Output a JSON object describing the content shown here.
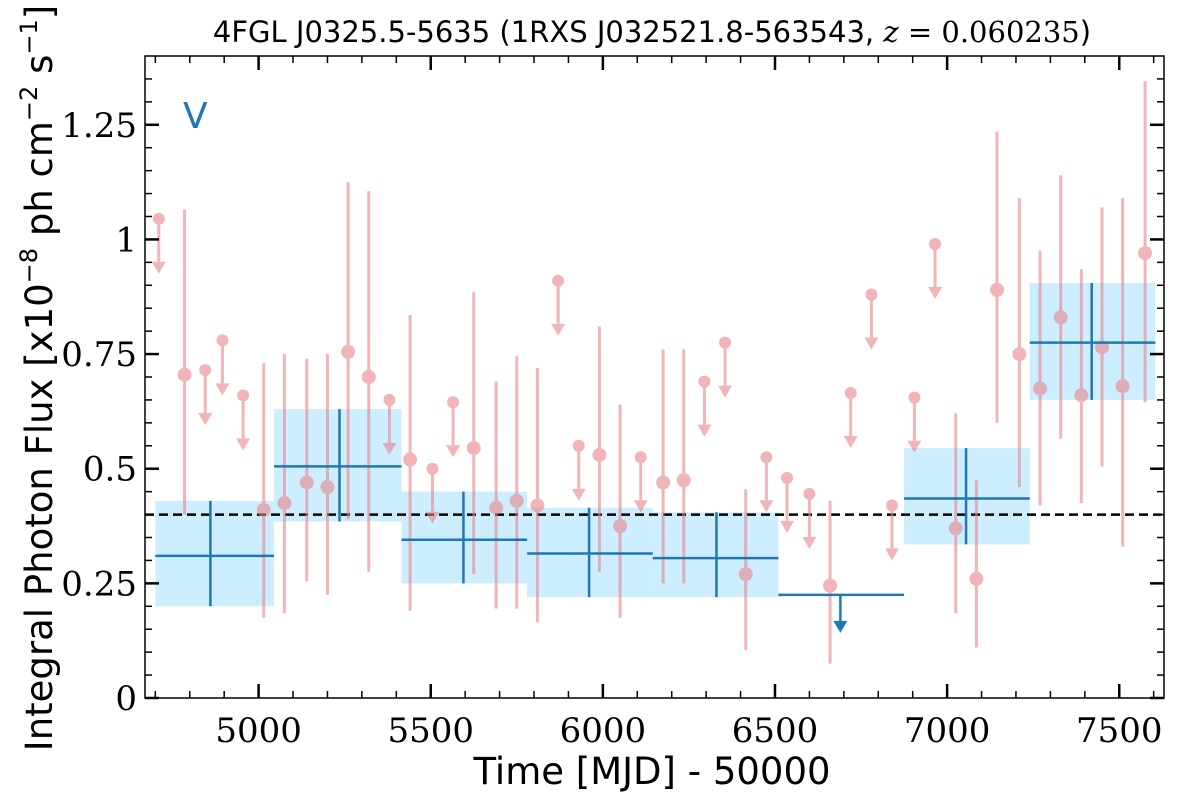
{
  "chart_data": {
    "type": "scatter",
    "title": {
      "prefix": "4FGL J0325.5-5635 (1RXS J032521.8-563543, ",
      "z_var": "z",
      "z_eq": " = 0.060235",
      "suffix": ")"
    },
    "xlabel": "Time [MJD] - 50000",
    "ylabel": {
      "a": "Integral Photon Flux [x10",
      "exp1": "−8",
      "b": " ph cm",
      "exp2": "−2",
      "c": " s",
      "exp3": "−1",
      "d": "]"
    },
    "band_label": "V",
    "xlim": [
      4670,
      7630
    ],
    "ylim": [
      0,
      1.4
    ],
    "x_ticks": [
      5000,
      5500,
      6000,
      6500,
      7000,
      7500
    ],
    "x_tick_labels": [
      "5000",
      "5500",
      "6000",
      "6500",
      "7000",
      "7500"
    ],
    "y_ticks": [
      0,
      0.25,
      0.5,
      0.75,
      1,
      1.25
    ],
    "y_tick_labels": [
      "0",
      "0.25",
      "0.5",
      "0.75",
      "1",
      "1.25"
    ],
    "reference_line": {
      "y": 0.4,
      "style": "dashed"
    },
    "colors": {
      "fine_points": "#e8838a",
      "coarse": "#1f77b4",
      "coarse_band": "#cdeeff",
      "ref_line": "#000000"
    },
    "fine_series": [
      {
        "x": 4710,
        "y": 1.045,
        "ul": true
      },
      {
        "x": 4785,
        "y": 0.705,
        "lo": 0.4,
        "hi": 1.065
      },
      {
        "x": 4845,
        "y": 0.715,
        "ul": true
      },
      {
        "x": 4895,
        "y": 0.78,
        "ul": true
      },
      {
        "x": 4955,
        "y": 0.66,
        "ul": true
      },
      {
        "x": 5015,
        "y": 0.41,
        "lo": 0.175,
        "hi": 0.73
      },
      {
        "x": 5075,
        "y": 0.425,
        "lo": 0.185,
        "hi": 0.75
      },
      {
        "x": 5140,
        "y": 0.47,
        "lo": 0.255,
        "hi": 0.74
      },
      {
        "x": 5200,
        "y": 0.46,
        "lo": 0.225,
        "hi": 0.75
      },
      {
        "x": 5260,
        "y": 0.755,
        "lo": 0.39,
        "hi": 1.125
      },
      {
        "x": 5320,
        "y": 0.7,
        "lo": 0.275,
        "hi": 1.105
      },
      {
        "x": 5380,
        "y": 0.65,
        "ul": true
      },
      {
        "x": 5440,
        "y": 0.52,
        "lo": 0.19,
        "hi": 0.835
      },
      {
        "x": 5505,
        "y": 0.5,
        "ul": true
      },
      {
        "x": 5565,
        "y": 0.645,
        "ul": true
      },
      {
        "x": 5625,
        "y": 0.545,
        "lo": 0.27,
        "hi": 0.885
      },
      {
        "x": 5690,
        "y": 0.415,
        "lo": 0.195,
        "hi": 0.69
      },
      {
        "x": 5750,
        "y": 0.43,
        "lo": 0.195,
        "hi": 0.745
      },
      {
        "x": 5810,
        "y": 0.42,
        "lo": 0.165,
        "hi": 0.72
      },
      {
        "x": 5870,
        "y": 0.91,
        "ul": true
      },
      {
        "x": 5930,
        "y": 0.55,
        "ul": true
      },
      {
        "x": 5990,
        "y": 0.53,
        "lo": 0.275,
        "hi": 0.81
      },
      {
        "x": 6050,
        "y": 0.375,
        "lo": 0.175,
        "hi": 0.64
      },
      {
        "x": 6110,
        "y": 0.525,
        "ul": true
      },
      {
        "x": 6175,
        "y": 0.47,
        "lo": 0.25,
        "hi": 0.76
      },
      {
        "x": 6235,
        "y": 0.475,
        "lo": 0.25,
        "hi": 0.76
      },
      {
        "x": 6295,
        "y": 0.69,
        "ul": true
      },
      {
        "x": 6355,
        "y": 0.775,
        "ul": true
      },
      {
        "x": 6415,
        "y": 0.27,
        "lo": 0.105,
        "hi": 0.455
      },
      {
        "x": 6475,
        "y": 0.525,
        "ul": true
      },
      {
        "x": 6535,
        "y": 0.48,
        "ul": true
      },
      {
        "x": 6600,
        "y": 0.445,
        "ul": true
      },
      {
        "x": 6660,
        "y": 0.245,
        "lo": 0.075,
        "hi": 0.43
      },
      {
        "x": 6720,
        "y": 0.665,
        "ul": true
      },
      {
        "x": 6780,
        "y": 0.88,
        "ul": true
      },
      {
        "x": 6840,
        "y": 0.42,
        "ul": true
      },
      {
        "x": 6905,
        "y": 0.655,
        "ul": true
      },
      {
        "x": 6965,
        "y": 0.99,
        "ul": true
      },
      {
        "x": 7025,
        "y": 0.37,
        "lo": 0.185,
        "hi": 0.62
      },
      {
        "x": 7085,
        "y": 0.26,
        "lo": 0.11,
        "hi": 0.475
      },
      {
        "x": 7145,
        "y": 0.89,
        "lo": 0.6,
        "hi": 1.235
      },
      {
        "x": 7210,
        "y": 0.75,
        "lo": 0.46,
        "hi": 1.09
      },
      {
        "x": 7270,
        "y": 0.675,
        "lo": 0.42,
        "hi": 0.975
      },
      {
        "x": 7330,
        "y": 0.83,
        "lo": 0.565,
        "hi": 1.14
      },
      {
        "x": 7390,
        "y": 0.66,
        "lo": 0.425,
        "hi": 0.935
      },
      {
        "x": 7450,
        "y": 0.765,
        "lo": 0.505,
        "hi": 1.07
      },
      {
        "x": 7510,
        "y": 0.68,
        "lo": 0.33,
        "hi": 1.09
      },
      {
        "x": 7575,
        "y": 0.97,
        "lo": 0.645,
        "hi": 1.345
      }
    ],
    "coarse_series": [
      {
        "x0": 4700,
        "x1": 5045,
        "x": 4860,
        "y": 0.31,
        "lo": 0.2,
        "hi": 0.43
      },
      {
        "x0": 5045,
        "x1": 5415,
        "x": 5235,
        "y": 0.505,
        "lo": 0.385,
        "hi": 0.63
      },
      {
        "x0": 5415,
        "x1": 5780,
        "x": 5595,
        "y": 0.345,
        "lo": 0.25,
        "hi": 0.45
      },
      {
        "x0": 5780,
        "x1": 6145,
        "x": 5960,
        "y": 0.315,
        "lo": 0.22,
        "hi": 0.415
      },
      {
        "x0": 6145,
        "x1": 6510,
        "x": 6330,
        "y": 0.305,
        "lo": 0.22,
        "hi": 0.405
      },
      {
        "x0": 6510,
        "x1": 6875,
        "x": 6690,
        "y": 0.225,
        "ul": true
      },
      {
        "x0": 6875,
        "x1": 7240,
        "x": 7055,
        "y": 0.435,
        "lo": 0.335,
        "hi": 0.545
      },
      {
        "x0": 7240,
        "x1": 7605,
        "x": 7420,
        "y": 0.775,
        "lo": 0.65,
        "hi": 0.905
      }
    ]
  }
}
